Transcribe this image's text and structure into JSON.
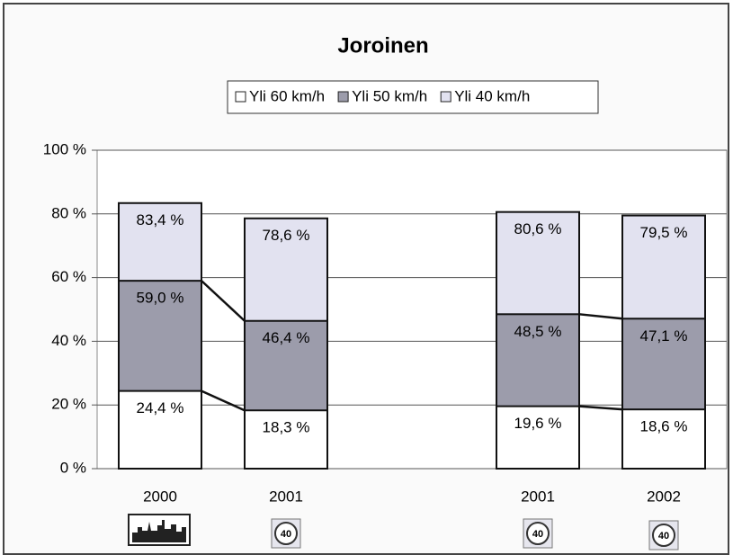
{
  "chart_data": {
    "type": "bar",
    "title": "Joroinen",
    "categories": [
      "2000",
      "2001",
      null,
      "2001",
      "2002"
    ],
    "series": [
      {
        "name": "Yli 60 km/h",
        "color": "#ffffff",
        "values": [
          24.4,
          18.3,
          null,
          19.6,
          18.6
        ],
        "value_labels": [
          "24,4 %",
          "18,3 %",
          null,
          "19,6 %",
          "18,6 %"
        ]
      },
      {
        "name": "Yli 50 km/h",
        "color": "#9c9cab",
        "values": [
          59.0,
          46.4,
          null,
          48.5,
          47.1
        ],
        "value_labels": [
          "59,0 %",
          "46,4 %",
          null,
          "48,5 %",
          "47,1 %"
        ]
      },
      {
        "name": "Yli 40 km/h",
        "color": "#e2e2f0",
        "values": [
          83.4,
          78.6,
          null,
          80.6,
          79.5
        ],
        "value_labels": [
          "83,4 %",
          "78,6 %",
          null,
          "80,6 %",
          "79,5 %"
        ]
      }
    ],
    "ylim": [
      0,
      100
    ],
    "yticks": [
      {
        "value": 0,
        "label": "0 %"
      },
      {
        "value": 20,
        "label": "20 %"
      },
      {
        "value": 40,
        "label": "40 %"
      },
      {
        "value": 60,
        "label": "60 %"
      },
      {
        "value": 80,
        "label": "80 %"
      },
      {
        "value": 100,
        "label": "100 %"
      }
    ],
    "grid": true,
    "legend": "top"
  }
}
